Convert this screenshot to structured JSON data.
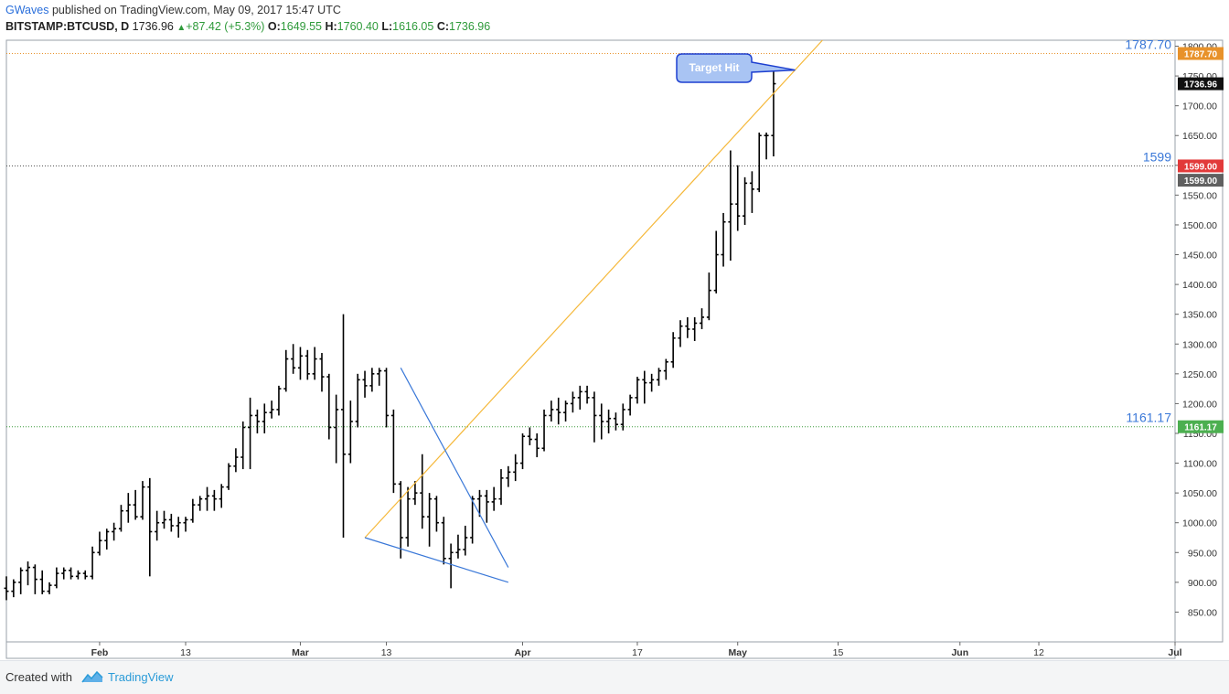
{
  "header": {
    "author": "GWaves",
    "published": " published on TradingView.com, May 09, 2017 15:47 UTC",
    "symbol": "BITSTAMP:BTCUSD, D",
    "last": "1736.96",
    "change": "+87.42 (+5.3%)",
    "o_label": "O:",
    "o_val": "1649.55",
    "h_label": "H:",
    "h_val": "1760.40",
    "l_label": "L:",
    "l_val": "1616.05",
    "c_label": "C:",
    "c_val": "1736.96"
  },
  "footer": {
    "created": "Created with",
    "brand": "TradingView"
  },
  "chart_data": {
    "type": "ohlc",
    "ylim": [
      800,
      1810
    ],
    "y_ticks": [
      850,
      900,
      950,
      1000,
      1050,
      1100,
      1150,
      1200,
      1250,
      1300,
      1350,
      1400,
      1450,
      1500,
      1550,
      1600,
      1650,
      1700,
      1750,
      1800
    ],
    "x_range": [
      "2017-01-19",
      "2017-07-01"
    ],
    "x_ticks": [
      {
        "date": "2017-02-01",
        "label": "Feb",
        "bold": true
      },
      {
        "date": "2017-02-13",
        "label": "13",
        "bold": false
      },
      {
        "date": "2017-03-01",
        "label": "Mar",
        "bold": true
      },
      {
        "date": "2017-03-13",
        "label": "13",
        "bold": false
      },
      {
        "date": "2017-04-01",
        "label": "Apr",
        "bold": true
      },
      {
        "date": "2017-04-17",
        "label": "17",
        "bold": false
      },
      {
        "date": "2017-05-01",
        "label": "May",
        "bold": true
      },
      {
        "date": "2017-05-15",
        "label": "15",
        "bold": false
      },
      {
        "date": "2017-06-01",
        "label": "Jun",
        "bold": true
      },
      {
        "date": "2017-06-12",
        "label": "12",
        "bold": false
      },
      {
        "date": "2017-07-01",
        "label": "Jul",
        "bold": true
      }
    ],
    "start_date": "2017-01-19",
    "bars": [
      [
        890,
        910,
        870,
        885
      ],
      [
        885,
        905,
        875,
        900
      ],
      [
        900,
        925,
        880,
        920
      ],
      [
        920,
        935,
        895,
        925
      ],
      [
        925,
        930,
        880,
        905
      ],
      [
        905,
        920,
        880,
        885
      ],
      [
        885,
        900,
        880,
        895
      ],
      [
        895,
        925,
        890,
        915
      ],
      [
        915,
        925,
        905,
        920
      ],
      [
        920,
        925,
        905,
        910
      ],
      [
        910,
        920,
        905,
        915
      ],
      [
        915,
        920,
        905,
        910
      ],
      [
        910,
        960,
        905,
        950
      ],
      [
        950,
        985,
        945,
        970
      ],
      [
        970,
        990,
        955,
        985
      ],
      [
        985,
        1000,
        970,
        990
      ],
      [
        990,
        1030,
        985,
        1020
      ],
      [
        1020,
        1050,
        1000,
        1030
      ],
      [
        1030,
        1055,
        1005,
        1010
      ],
      [
        1010,
        1070,
        1005,
        1060
      ],
      [
        1060,
        1075,
        910,
        985
      ],
      [
        985,
        1020,
        970,
        1000
      ],
      [
        1000,
        1020,
        990,
        1005
      ],
      [
        1005,
        1015,
        985,
        995
      ],
      [
        995,
        1010,
        975,
        1000
      ],
      [
        1000,
        1010,
        985,
        1005
      ],
      [
        1005,
        1040,
        1000,
        1030
      ],
      [
        1030,
        1045,
        1020,
        1040
      ],
      [
        1040,
        1060,
        1020,
        1045
      ],
      [
        1045,
        1055,
        1020,
        1040
      ],
      [
        1040,
        1065,
        1025,
        1060
      ],
      [
        1060,
        1100,
        1055,
        1095
      ],
      [
        1095,
        1125,
        1085,
        1110
      ],
      [
        1110,
        1170,
        1090,
        1160
      ],
      [
        1160,
        1210,
        1090,
        1180
      ],
      [
        1180,
        1190,
        1150,
        1170
      ],
      [
        1170,
        1200,
        1150,
        1185
      ],
      [
        1185,
        1205,
        1175,
        1190
      ],
      [
        1190,
        1230,
        1180,
        1225
      ],
      [
        1225,
        1290,
        1220,
        1275
      ],
      [
        1275,
        1300,
        1250,
        1260
      ],
      [
        1260,
        1295,
        1240,
        1280
      ],
      [
        1280,
        1290,
        1240,
        1250
      ],
      [
        1250,
        1295,
        1240,
        1275
      ],
      [
        1275,
        1285,
        1220,
        1245
      ],
      [
        1245,
        1250,
        1140,
        1160
      ],
      [
        1160,
        1215,
        1100,
        1190
      ],
      [
        1190,
        1350,
        975,
        1115
      ],
      [
        1115,
        1205,
        1100,
        1170
      ],
      [
        1170,
        1250,
        1160,
        1240
      ],
      [
        1240,
        1255,
        1210,
        1230
      ],
      [
        1230,
        1260,
        1220,
        1250
      ],
      [
        1250,
        1260,
        1230,
        1255
      ],
      [
        1255,
        1260,
        1160,
        1180
      ],
      [
        1180,
        1190,
        1050,
        1065
      ],
      [
        1065,
        1070,
        940,
        975
      ],
      [
        975,
        1060,
        960,
        1040
      ],
      [
        1040,
        1070,
        1030,
        1050
      ],
      [
        1050,
        1115,
        990,
        1010
      ],
      [
        1010,
        1050,
        960,
        1040
      ],
      [
        1040,
        1045,
        985,
        1000
      ],
      [
        1000,
        1010,
        930,
        940
      ],
      [
        940,
        965,
        890,
        950
      ],
      [
        950,
        980,
        940,
        955
      ],
      [
        955,
        995,
        945,
        975
      ],
      [
        975,
        1045,
        965,
        1040
      ],
      [
        1040,
        1055,
        1010,
        1045
      ],
      [
        1045,
        1055,
        1000,
        1035
      ],
      [
        1035,
        1060,
        1020,
        1040
      ],
      [
        1040,
        1090,
        1030,
        1075
      ],
      [
        1075,
        1095,
        1060,
        1085
      ],
      [
        1085,
        1115,
        1070,
        1100
      ],
      [
        1100,
        1150,
        1090,
        1145
      ],
      [
        1145,
        1160,
        1130,
        1140
      ],
      [
        1140,
        1150,
        1110,
        1125
      ],
      [
        1125,
        1190,
        1120,
        1180
      ],
      [
        1180,
        1205,
        1170,
        1190
      ],
      [
        1190,
        1210,
        1165,
        1185
      ],
      [
        1185,
        1205,
        1170,
        1200
      ],
      [
        1200,
        1220,
        1185,
        1210
      ],
      [
        1210,
        1230,
        1190,
        1220
      ],
      [
        1220,
        1230,
        1200,
        1210
      ],
      [
        1210,
        1220,
        1135,
        1180
      ],
      [
        1180,
        1200,
        1140,
        1170
      ],
      [
        1170,
        1190,
        1150,
        1175
      ],
      [
        1175,
        1185,
        1155,
        1165
      ],
      [
        1165,
        1200,
        1155,
        1190
      ],
      [
        1190,
        1215,
        1180,
        1210
      ],
      [
        1210,
        1245,
        1200,
        1240
      ],
      [
        1240,
        1255,
        1200,
        1235
      ],
      [
        1235,
        1250,
        1220,
        1240
      ],
      [
        1240,
        1260,
        1230,
        1255
      ],
      [
        1255,
        1275,
        1240,
        1270
      ],
      [
        1270,
        1320,
        1260,
        1310
      ],
      [
        1310,
        1340,
        1295,
        1330
      ],
      [
        1330,
        1345,
        1310,
        1325
      ],
      [
        1325,
        1345,
        1305,
        1335
      ],
      [
        1335,
        1360,
        1325,
        1345
      ],
      [
        1345,
        1420,
        1340,
        1390
      ],
      [
        1390,
        1490,
        1385,
        1450
      ],
      [
        1450,
        1520,
        1430,
        1505
      ],
      [
        1505,
        1625,
        1440,
        1535
      ],
      [
        1535,
        1600,
        1490,
        1515
      ],
      [
        1515,
        1580,
        1500,
        1570
      ],
      [
        1570,
        1590,
        1520,
        1560
      ],
      [
        1560,
        1655,
        1555,
        1650
      ],
      [
        1650,
        1655,
        1610,
        1650
      ],
      [
        1650,
        1760,
        1615,
        1737
      ]
    ],
    "hlines": [
      {
        "y": 1787.7,
        "label": "1787.70",
        "color": "#e8922a",
        "label_bg": "#e8922a"
      },
      {
        "y": 1599,
        "label": "1599",
        "color": "#555555",
        "label_bg": "#e23a3a",
        "scale_label": "1599.00"
      },
      {
        "y": 1161.17,
        "label": "1161.17",
        "color": "#3a9a3a",
        "label_bg": "#4caf50",
        "scale_label": "1161.17"
      }
    ],
    "price_tag": {
      "y": 1736.96,
      "label": "1736.96",
      "bg": "#111111"
    },
    "price_tag2": {
      "y": 1575,
      "label": "1599.00",
      "bg": "#606060"
    },
    "trendlines": [
      {
        "from": [
          "2017-03-10",
          975
        ],
        "to": [
          "2017-05-09",
          1760
        ],
        "color": "#f5b83a",
        "extend": true
      },
      {
        "from": [
          "2017-03-10",
          975
        ],
        "to": [
          "2017-03-30",
          900
        ],
        "color": "#3a78d8"
      },
      {
        "from": [
          "2017-03-15",
          1260
        ],
        "to": [
          "2017-03-30",
          925
        ],
        "color": "#3a78d8"
      }
    ],
    "callout": {
      "text": "Target Hit",
      "anchor": [
        "2017-05-09",
        1760
      ]
    }
  }
}
